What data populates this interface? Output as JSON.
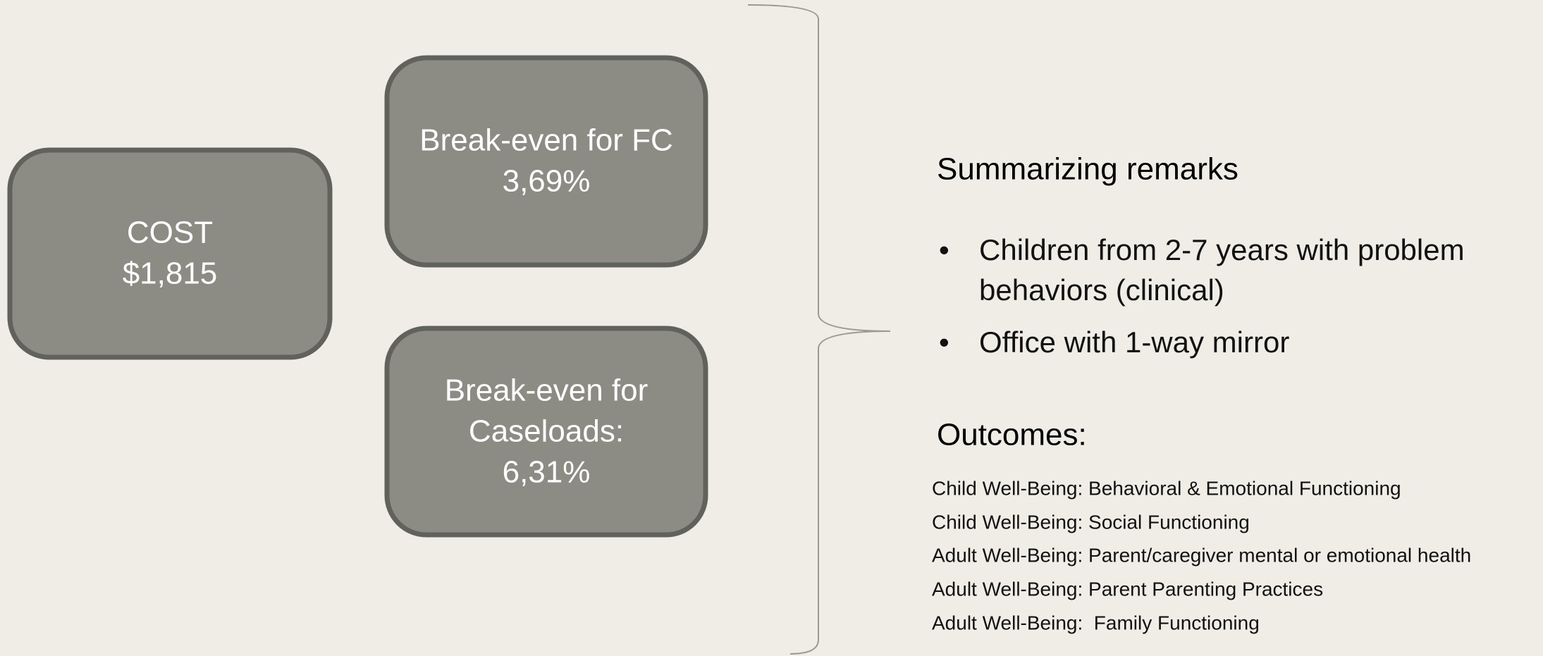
{
  "boxes": [
    {
      "lines": [
        "COST",
        "$1,815"
      ]
    },
    {
      "lines": [
        "Break-even for FC",
        "3,69%"
      ]
    },
    {
      "lines": [
        "Break-even for",
        "Caseloads:",
        "6,31%"
      ]
    }
  ],
  "summary": {
    "title": "Summarizing remarks",
    "bullets": [
      [
        "Children from 2-7 years with problem",
        "behaviors (clinical)"
      ],
      [
        "Office with 1-way mirror"
      ]
    ]
  },
  "outcomes": {
    "title": "Outcomes:",
    "items": [
      "Child Well-Being: Behavioral & Emotional Functioning",
      "Child Well-Being: Social Functioning",
      "Adult Well-Being: Parent/caregiver mental or emotional health",
      "Adult Well-Being: Parent Parenting Practices",
      "Adult Well-Being:  Family Functioning"
    ]
  }
}
